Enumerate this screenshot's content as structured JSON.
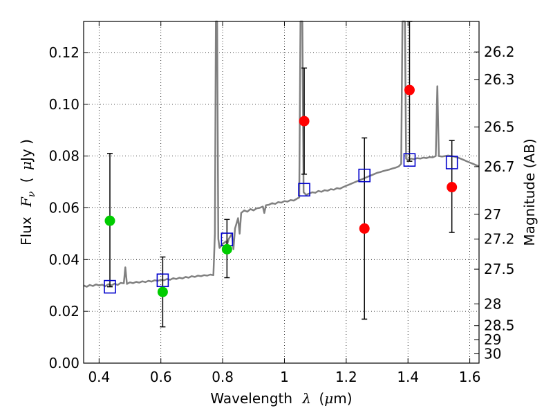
{
  "chart_data": {
    "type": "line",
    "xlabel": {
      "prefix": "Wavelength",
      "symbol": "λ",
      "unit_open": "(",
      "unit_mu": "μ",
      "unit_rest": "m)"
    },
    "ylabel": {
      "prefix": "Flux",
      "symbol": "F",
      "subscript": "ν",
      "unit_open": "(",
      "unit_mu": "μ",
      "unit_rest": "Jy )"
    },
    "y2label": "Magnitude (AB)",
    "xlim": [
      0.35,
      1.63
    ],
    "ylim": [
      0.0,
      0.132
    ],
    "x_ticks": [
      0.4,
      0.6,
      0.8,
      1.0,
      1.2,
      1.4,
      1.6
    ],
    "x_tick_labels": [
      "0.4",
      "0.6",
      "0.8",
      "1",
      "1.2",
      "1.4",
      "1.6"
    ],
    "y_ticks": [
      0.0,
      0.02,
      0.04,
      0.06,
      0.08,
      0.1,
      0.12
    ],
    "y_tick_labels": [
      "0.00",
      "0.02",
      "0.04",
      "0.06",
      "0.08",
      "0.10",
      "0.12"
    ],
    "y2_ticks": [
      {
        "label": "26.2",
        "flux": 0.1202
      },
      {
        "label": "26.3",
        "flux": 0.1096
      },
      {
        "label": "26.5",
        "flux": 0.0912
      },
      {
        "label": "26.7",
        "flux": 0.0759
      },
      {
        "label": "27",
        "flux": 0.0575
      },
      {
        "label": "27.2",
        "flux": 0.0479
      },
      {
        "label": "27.5",
        "flux": 0.0363
      },
      {
        "label": "28",
        "flux": 0.0229
      },
      {
        "label": "28.5",
        "flux": 0.0145
      },
      {
        "label": "29",
        "flux": 0.0091
      },
      {
        "label": "30",
        "flux": 0.0036
      }
    ],
    "grid": true,
    "series": [
      {
        "kind": "model-spectrum",
        "color": "#808080",
        "points": [
          [
            0.35,
            0.03
          ],
          [
            0.36,
            0.0295
          ],
          [
            0.37,
            0.0302
          ],
          [
            0.38,
            0.0298
          ],
          [
            0.39,
            0.0304
          ],
          [
            0.4,
            0.03
          ],
          [
            0.41,
            0.0303
          ],
          [
            0.42,
            0.0297
          ],
          [
            0.43,
            0.0305
          ],
          [
            0.44,
            0.03
          ],
          [
            0.45,
            0.0307
          ],
          [
            0.46,
            0.0302
          ],
          [
            0.47,
            0.031
          ],
          [
            0.48,
            0.0308
          ],
          [
            0.485,
            0.037
          ],
          [
            0.49,
            0.0306
          ],
          [
            0.5,
            0.0312
          ],
          [
            0.51,
            0.0309
          ],
          [
            0.52,
            0.0314
          ],
          [
            0.53,
            0.0311
          ],
          [
            0.54,
            0.0316
          ],
          [
            0.55,
            0.0313
          ],
          [
            0.56,
            0.0318
          ],
          [
            0.57,
            0.0315
          ],
          [
            0.58,
            0.032
          ],
          [
            0.59,
            0.0318
          ],
          [
            0.6,
            0.0322
          ],
          [
            0.61,
            0.032
          ],
          [
            0.62,
            0.0325
          ],
          [
            0.63,
            0.0322
          ],
          [
            0.64,
            0.0328
          ],
          [
            0.65,
            0.0325
          ],
          [
            0.66,
            0.033
          ],
          [
            0.67,
            0.0327
          ],
          [
            0.68,
            0.0333
          ],
          [
            0.69,
            0.033
          ],
          [
            0.7,
            0.0336
          ],
          [
            0.71,
            0.0333
          ],
          [
            0.72,
            0.0338
          ],
          [
            0.73,
            0.0336
          ],
          [
            0.74,
            0.034
          ],
          [
            0.75,
            0.0338
          ],
          [
            0.76,
            0.0342
          ],
          [
            0.77,
            0.034
          ],
          [
            0.775,
            0.05
          ],
          [
            0.778,
            0.132
          ],
          [
            0.782,
            0.132
          ],
          [
            0.786,
            0.048
          ],
          [
            0.79,
            0.0445
          ],
          [
            0.8,
            0.046
          ],
          [
            0.81,
            0.047
          ],
          [
            0.815,
            0.046
          ],
          [
            0.82,
            0.048
          ],
          [
            0.83,
            0.05
          ],
          [
            0.835,
            0.044
          ],
          [
            0.84,
            0.052
          ],
          [
            0.85,
            0.056
          ],
          [
            0.855,
            0.05
          ],
          [
            0.86,
            0.058
          ],
          [
            0.87,
            0.059
          ],
          [
            0.88,
            0.0585
          ],
          [
            0.89,
            0.0595
          ],
          [
            0.9,
            0.059
          ],
          [
            0.91,
            0.0598
          ],
          [
            0.92,
            0.06
          ],
          [
            0.93,
            0.0605
          ],
          [
            0.935,
            0.058
          ],
          [
            0.94,
            0.061
          ],
          [
            0.95,
            0.0612
          ],
          [
            0.96,
            0.0618
          ],
          [
            0.97,
            0.0615
          ],
          [
            0.98,
            0.0622
          ],
          [
            0.99,
            0.062
          ],
          [
            1.0,
            0.0626
          ],
          [
            1.01,
            0.0624
          ],
          [
            1.02,
            0.063
          ],
          [
            1.03,
            0.0628
          ],
          [
            1.04,
            0.0635
          ],
          [
            1.048,
            0.064
          ],
          [
            1.052,
            0.132
          ],
          [
            1.058,
            0.132
          ],
          [
            1.062,
            0.066
          ],
          [
            1.07,
            0.065
          ],
          [
            1.08,
            0.0655
          ],
          [
            1.09,
            0.066
          ],
          [
            1.1,
            0.0658
          ],
          [
            1.11,
            0.0665
          ],
          [
            1.12,
            0.0662
          ],
          [
            1.13,
            0.0668
          ],
          [
            1.14,
            0.0666
          ],
          [
            1.15,
            0.0672
          ],
          [
            1.16,
            0.067
          ],
          [
            1.17,
            0.0676
          ],
          [
            1.18,
            0.0674
          ],
          [
            1.19,
            0.068
          ],
          [
            1.2,
            0.0685
          ],
          [
            1.21,
            0.069
          ],
          [
            1.22,
            0.0695
          ],
          [
            1.23,
            0.07
          ],
          [
            1.24,
            0.0705
          ],
          [
            1.25,
            0.071
          ],
          [
            1.26,
            0.0715
          ],
          [
            1.27,
            0.072
          ],
          [
            1.28,
            0.0725
          ],
          [
            1.29,
            0.073
          ],
          [
            1.3,
            0.0735
          ],
          [
            1.31,
            0.0738
          ],
          [
            1.32,
            0.0742
          ],
          [
            1.33,
            0.0745
          ],
          [
            1.34,
            0.0748
          ],
          [
            1.35,
            0.0752
          ],
          [
            1.36,
            0.0755
          ],
          [
            1.37,
            0.076
          ],
          [
            1.378,
            0.077
          ],
          [
            1.382,
            0.132
          ],
          [
            1.39,
            0.132
          ],
          [
            1.394,
            0.079
          ],
          [
            1.4,
            0.0785
          ],
          [
            1.41,
            0.079
          ],
          [
            1.42,
            0.0788
          ],
          [
            1.43,
            0.0792
          ],
          [
            1.44,
            0.079
          ],
          [
            1.45,
            0.0794
          ],
          [
            1.46,
            0.0792
          ],
          [
            1.47,
            0.0796
          ],
          [
            1.48,
            0.0795
          ],
          [
            1.49,
            0.08
          ],
          [
            1.495,
            0.107
          ],
          [
            1.5,
            0.08
          ],
          [
            1.51,
            0.0798
          ],
          [
            1.52,
            0.08
          ],
          [
            1.53,
            0.0802
          ],
          [
            1.54,
            0.08
          ],
          [
            1.55,
            0.0798
          ],
          [
            1.56,
            0.0795
          ],
          [
            1.57,
            0.079
          ],
          [
            1.58,
            0.0785
          ],
          [
            1.59,
            0.078
          ],
          [
            1.6,
            0.0775
          ],
          [
            1.61,
            0.077
          ],
          [
            1.62,
            0.0765
          ],
          [
            1.63,
            0.076
          ]
        ]
      },
      {
        "kind": "synthetic-photometry",
        "color": "#0000cc",
        "x": [
          0.435,
          0.606,
          0.814,
          1.064,
          1.259,
          1.405,
          1.542
        ],
        "values": [
          0.0295,
          0.032,
          0.0478,
          0.067,
          0.0725,
          0.0785,
          0.0775
        ]
      },
      {
        "kind": "observed-green",
        "color": "#00cc00",
        "x": [
          0.435,
          0.606,
          0.814
        ],
        "values": [
          0.055,
          0.0275,
          0.044
        ],
        "err_low": [
          0.0295,
          0.014,
          0.033
        ],
        "err_high": [
          0.081,
          0.041,
          0.0555
        ]
      },
      {
        "kind": "observed-red",
        "color": "#ff0000",
        "x": [
          1.064,
          1.259,
          1.405,
          1.542
        ],
        "values": [
          0.0935,
          0.052,
          0.1055,
          0.068
        ],
        "err_low": [
          0.073,
          0.017,
          0.078,
          0.0505
        ],
        "err_high": [
          0.114,
          0.087,
          0.132,
          0.086
        ]
      }
    ]
  }
}
